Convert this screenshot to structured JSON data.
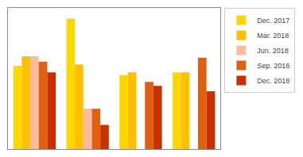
{
  "chart_data": {
    "type": "bar",
    "categories": [
      null,
      null,
      null,
      null
    ],
    "series": [
      {
        "name": "Dec. 2017",
        "color": "#FFD700",
        "values": [
          62,
          97,
          55,
          57
        ]
      },
      {
        "name": "Mar. 2018",
        "color": "#FFC000",
        "values": [
          69,
          63,
          57,
          57
        ]
      },
      {
        "name": "Jun. 2018",
        "color": "#FFBBA0",
        "values": [
          69,
          30,
          0,
          0
        ]
      },
      {
        "name": "Sep. 2018",
        "color": "#E06010",
        "values": [
          65,
          30,
          50,
          68
        ]
      },
      {
        "name": "Dec. 2018",
        "color": "#C83000",
        "values": [
          57,
          18,
          47,
          43
        ]
      }
    ],
    "ylim": [
      0,
      105
    ],
    "yticks": [],
    "grid": false,
    "tick_labels": false,
    "legend": "upper right"
  }
}
